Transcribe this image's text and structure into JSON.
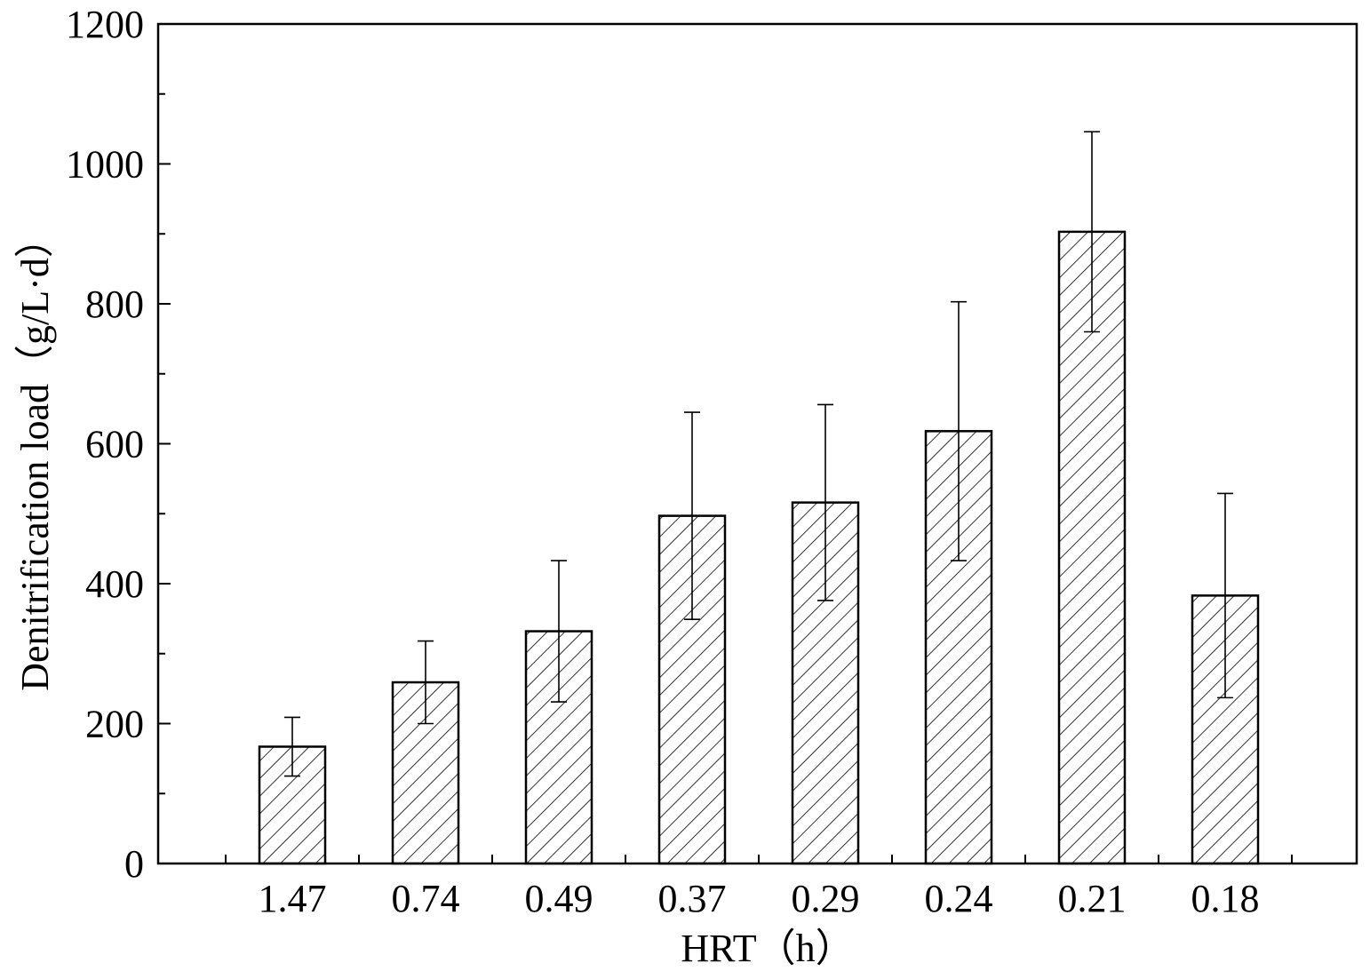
{
  "chart_data": {
    "type": "bar",
    "xlabel": "HRT（h）",
    "ylabel": "Denitrification load（g/L·d）",
    "categories": [
      "1.47",
      "0.74",
      "0.49",
      "0.37",
      "0.29",
      "0.24",
      "0.21",
      "0.18"
    ],
    "values": [
      167,
      259,
      332,
      497,
      516,
      618,
      903,
      383
    ],
    "error_upper": [
      42,
      59,
      101,
      148,
      140,
      185,
      143,
      146
    ],
    "error_lower": [
      42,
      59,
      101,
      148,
      140,
      185,
      143,
      146
    ],
    "ylim": [
      0,
      1200
    ],
    "yticks": [
      0,
      200,
      400,
      600,
      800,
      1000,
      1200
    ],
    "y_minor_step": 100,
    "bar_fill": "hatched",
    "colors": {
      "bar_stroke": "#000000",
      "hatch": "#000000",
      "background": "#ffffff"
    },
    "grid": false,
    "legend": "none"
  }
}
